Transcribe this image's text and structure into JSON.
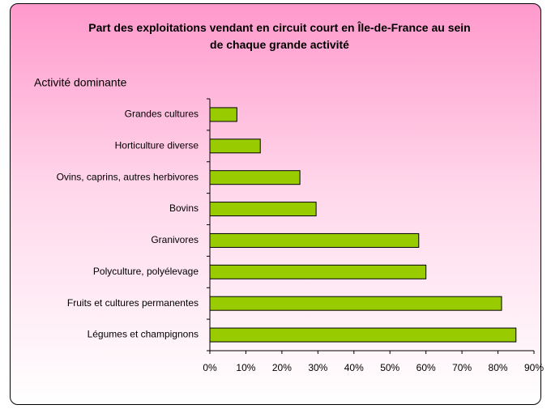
{
  "chart_data": {
    "type": "bar",
    "orientation": "horizontal",
    "title": "Part des exploitations vendant en circuit court en Île-de-France au sein de chaque grande activité",
    "y_axis_label": "Activité dominante",
    "categories": [
      "Grandes cultures",
      "Horticulture diverse",
      "Ovins, caprins, autres herbivores",
      "Bovins",
      "Granivores",
      "Polyculture, polyélevage",
      "Fruits et cultures permanentes",
      "Légumes et champignons"
    ],
    "values": [
      7.5,
      14,
      25,
      29.5,
      58,
      60,
      81,
      85
    ],
    "color": "#99cc00",
    "xlim": [
      0,
      90
    ],
    "xticks": [
      {
        "value": 0,
        "label": "0%"
      },
      {
        "value": 10,
        "label": "10%"
      },
      {
        "value": 20,
        "label": "20%"
      },
      {
        "value": 30,
        "label": "30%"
      },
      {
        "value": 40,
        "label": "40%"
      },
      {
        "value": 50,
        "label": "50%"
      },
      {
        "value": 60,
        "label": "60%"
      },
      {
        "value": 70,
        "label": "70%"
      },
      {
        "value": 80,
        "label": "80%"
      },
      {
        "value": 90,
        "label": "90%"
      }
    ]
  }
}
